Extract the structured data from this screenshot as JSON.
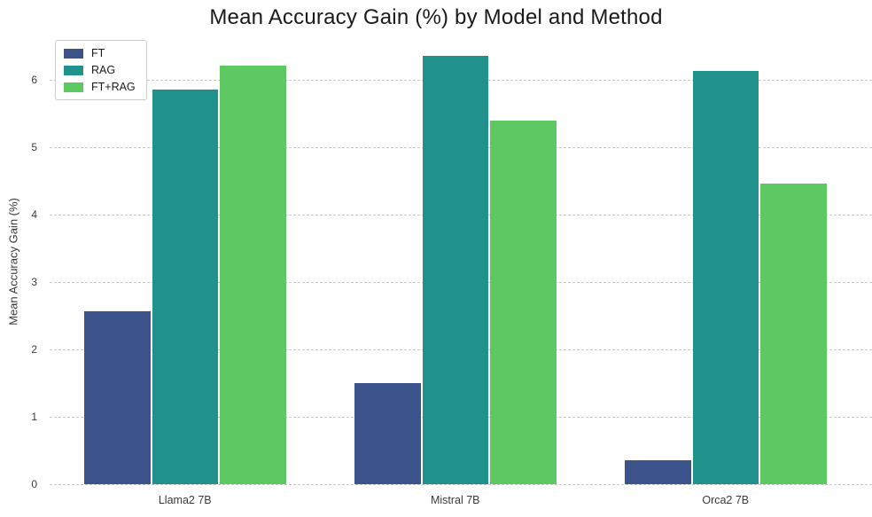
{
  "chart_data": {
    "type": "bar",
    "title": "Mean Accuracy Gain (%) by Model and Method",
    "xlabel": "",
    "ylabel": "Mean Accuracy Gain (%)",
    "categories": [
      "Llama2 7B",
      "Mistral 7B",
      "Orca2 7B"
    ],
    "series": [
      {
        "name": "FT",
        "color": "#3b528b",
        "values": [
          2.57,
          1.5,
          0.36
        ]
      },
      {
        "name": "RAG",
        "color": "#21918c",
        "values": [
          5.85,
          6.35,
          6.13
        ]
      },
      {
        "name": "FT+RAG",
        "color": "#5ec962",
        "values": [
          6.21,
          5.39,
          4.46
        ]
      }
    ],
    "y_ticks": [
      0,
      1,
      2,
      3,
      4,
      5,
      6
    ],
    "ylim": [
      0,
      6.6
    ],
    "grid": "horizontal-dashed",
    "legend_position": "upper-left",
    "colors": {
      "background": "#ffffff",
      "gridline": "#c6c6c6",
      "tick_text": "#3a3a3a",
      "title_text": "#1a1a1a"
    }
  }
}
